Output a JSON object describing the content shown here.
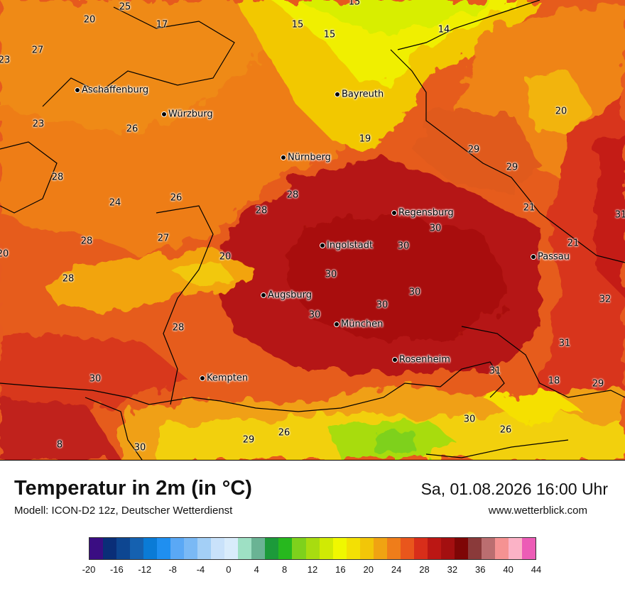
{
  "title": "Temperatur in 2m (in °C)",
  "subtitle": "Modell: ICON-D2 12z, Deutscher Wetterdienst",
  "datetime": "Sa, 01.08.2026 16:00 Uhr",
  "website": "www.wetterblick.com",
  "cities": [
    "Aschaffenburg",
    "Würzburg",
    "Bayreuth",
    "Nürnberg",
    "Regensburg",
    "Ingolstadt",
    "Passau",
    "Augsburg",
    "München",
    "Rosenheim",
    "Kempten"
  ],
  "map_values": [
    "25",
    "20",
    "17",
    "15",
    "15",
    "15",
    "14",
    "27",
    "23",
    "20",
    "23",
    "26",
    "19",
    "29",
    "29",
    "28",
    "24",
    "26",
    "28",
    "28",
    "21",
    "31",
    "27",
    "20",
    "21",
    "28",
    "20",
    "30",
    "30",
    "30",
    "28",
    "30",
    "32",
    "30",
    "30",
    "28",
    "31",
    "30",
    "31",
    "18",
    "29",
    "30",
    "26",
    "26",
    "29",
    "30",
    "8"
  ],
  "legend": {
    "ticks": [
      "-20",
      "-16",
      "-12",
      "-8",
      "-4",
      "0",
      "4",
      "8",
      "12",
      "16",
      "20",
      "24",
      "28",
      "32",
      "36",
      "40",
      "44"
    ],
    "colors": [
      "#3a0d82",
      "#0a2e78",
      "#0d4691",
      "#1561b0",
      "#0a7bd6",
      "#1f8ff0",
      "#5aa8f5",
      "#7ab9f5",
      "#a3cff6",
      "#c9e2fa",
      "#d9ecfb",
      "#9ee0c4",
      "#6ab394",
      "#1c9a3a",
      "#27b81e",
      "#7ed11c",
      "#a8dc10",
      "#d0ea04",
      "#f0f800",
      "#f3e004",
      "#f2c608",
      "#f0a312",
      "#ef7d1a",
      "#e9561c",
      "#d82e1a",
      "#bb1714",
      "#a30f10",
      "#7e0606",
      "#8a3a3a",
      "#bb6e70",
      "#f59292",
      "#fbb2c6",
      "#ec5cb6"
    ]
  }
}
